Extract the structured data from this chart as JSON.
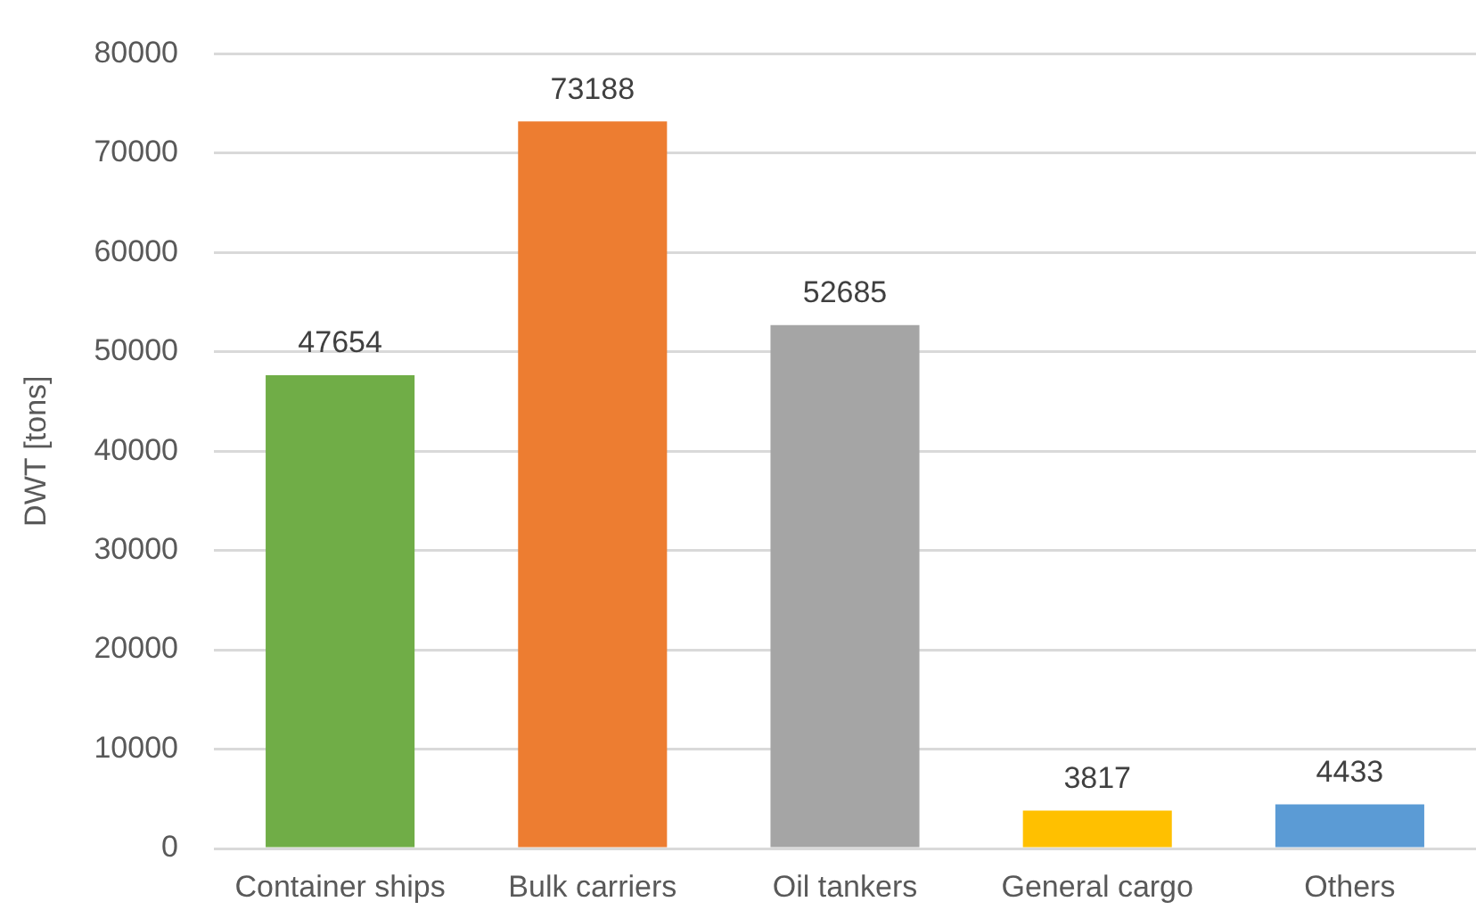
{
  "chart_data": {
    "type": "bar",
    "ylabel": "DWT [tons]",
    "categories": [
      "Container ships",
      "Bulk carriers",
      "Oil tankers",
      "General cargo",
      "Others"
    ],
    "values": [
      47654,
      73188,
      52685,
      3817,
      4433
    ],
    "colors": [
      "#70ad47",
      "#ed7d31",
      "#a5a5a5",
      "#ffc000",
      "#5b9bd5"
    ],
    "ylim": [
      0,
      80000
    ],
    "yticks": [
      0,
      10000,
      20000,
      30000,
      40000,
      50000,
      60000,
      70000,
      80000
    ],
    "grid": "y",
    "legend": false,
    "data_labels": true
  }
}
